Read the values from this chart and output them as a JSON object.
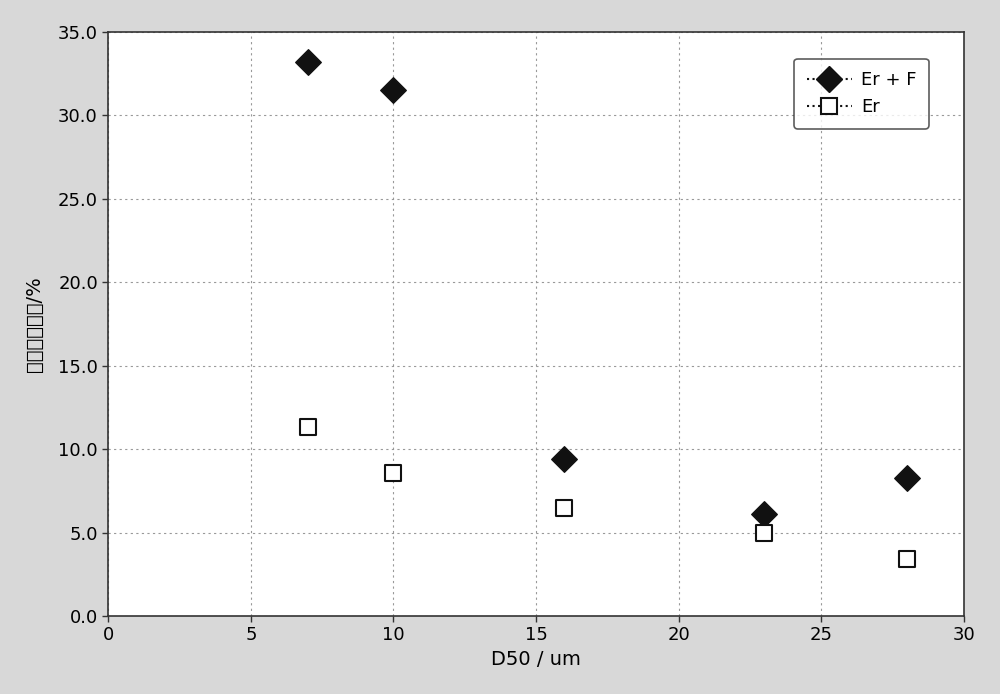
{
  "er_f_x": [
    7,
    10,
    16,
    23,
    28
  ],
  "er_f_y": [
    33.2,
    31.5,
    9.4,
    6.1,
    8.3
  ],
  "er_x": [
    7,
    10,
    16,
    23,
    28
  ],
  "er_y": [
    11.3,
    8.6,
    6.5,
    5.0,
    3.4
  ],
  "xlabel": "D50 / um",
  "ylabel": "鈢溶出抑制率/%",
  "xlim": [
    0,
    30
  ],
  "ylim": [
    0.0,
    35.0
  ],
  "xticks": [
    0,
    5,
    10,
    15,
    20,
    25,
    30
  ],
  "yticks": [
    0.0,
    5.0,
    10.0,
    15.0,
    20.0,
    25.0,
    30.0,
    35.0
  ],
  "legend_er_f": "Er + F",
  "legend_er": "Er",
  "outer_bg_color": "#d8d8d8",
  "plot_bg_color": "#ffffff",
  "grid_color": "#999999",
  "marker_color_er_f": "#111111",
  "marker_color_er_open": "#ffffff",
  "marker_edge_color_er": "#111111",
  "spine_color": "#333333",
  "tick_fontsize": 13,
  "label_fontsize": 14,
  "legend_fontsize": 13,
  "marker_size_diamond": 13,
  "marker_size_square": 11
}
